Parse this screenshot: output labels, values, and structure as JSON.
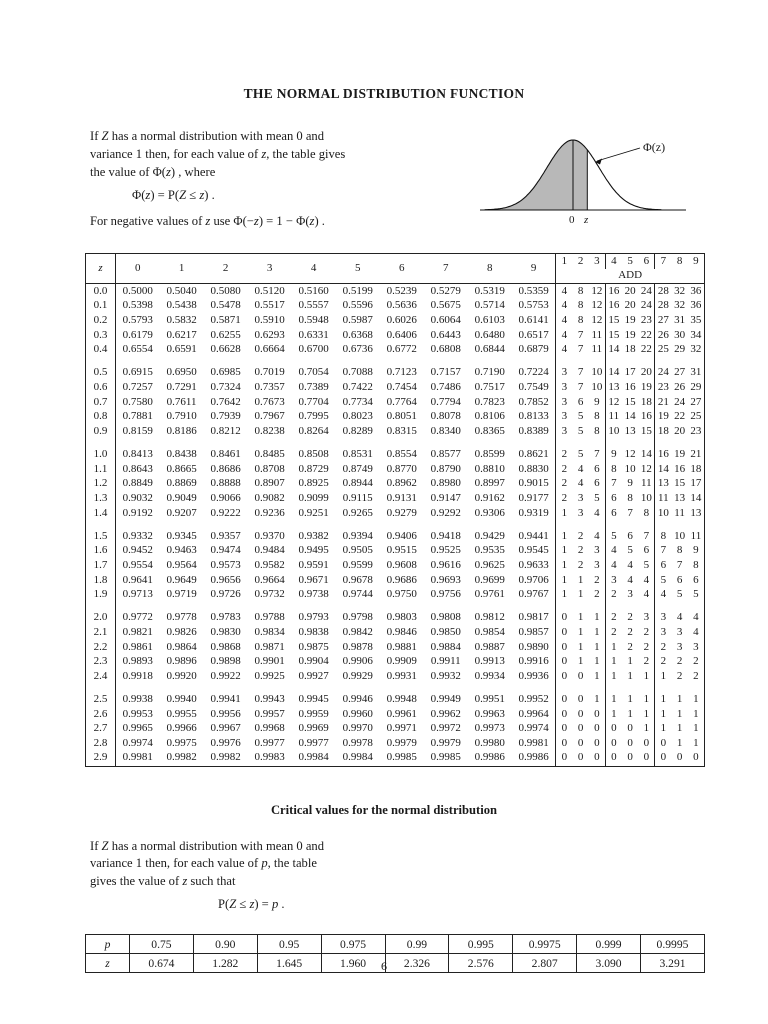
{
  "page": {
    "title": "THE NORMAL DISTRIBUTION FUNCTION",
    "number": "6"
  },
  "intro": {
    "line1": [
      [
        "r",
        "If "
      ],
      [
        "i",
        "Z"
      ],
      [
        "r",
        " has a normal distribution with mean 0 and"
      ]
    ],
    "line2": [
      [
        "r",
        "variance 1 then, for each value of "
      ],
      [
        "i",
        "z"
      ],
      [
        "r",
        ", the table gives"
      ]
    ],
    "line3": [
      [
        "r",
        "the value of  Φ("
      ],
      [
        "i",
        "z"
      ],
      [
        "r",
        ") , where"
      ]
    ],
    "formula": [
      [
        "r",
        "Φ("
      ],
      [
        "i",
        "z"
      ],
      [
        "r",
        ")  =  P("
      ],
      [
        "i",
        "Z"
      ],
      [
        "r",
        "  ≤  "
      ],
      [
        "i",
        "z"
      ],
      [
        "r",
        ") ."
      ]
    ],
    "note": [
      [
        "r",
        "For negative values of "
      ],
      [
        "i",
        "z"
      ],
      [
        "r",
        " use  Φ(−"
      ],
      [
        "i",
        "z"
      ],
      [
        "r",
        ")  =  1 − Φ("
      ],
      [
        "i",
        "z"
      ],
      [
        "r",
        ") ."
      ]
    ]
  },
  "diagram": {
    "phi_label": "Φ(z)",
    "zero_label": "0",
    "z_label": "z",
    "shade_color": "#b8b8b8"
  },
  "normal_table": {
    "corner_header": "z",
    "col_headers": [
      "0",
      "1",
      "2",
      "3",
      "4",
      "5",
      "6",
      "7",
      "8",
      "9"
    ],
    "add_headers": [
      "1",
      "2",
      "3",
      "4",
      "5",
      "6",
      "7",
      "8",
      "9"
    ],
    "add_label": "ADD",
    "rows": [
      {
        "z": "0.0",
        "values": [
          "0.5000",
          "0.5040",
          "0.5080",
          "0.5120",
          "0.5160",
          "0.5199",
          "0.5239",
          "0.5279",
          "0.5319",
          "0.5359"
        ],
        "add": [
          "4",
          "8",
          "12",
          "16",
          "20",
          "24",
          "28",
          "32",
          "36"
        ]
      },
      {
        "z": "0.1",
        "values": [
          "0.5398",
          "0.5438",
          "0.5478",
          "0.5517",
          "0.5557",
          "0.5596",
          "0.5636",
          "0.5675",
          "0.5714",
          "0.5753"
        ],
        "add": [
          "4",
          "8",
          "12",
          "16",
          "20",
          "24",
          "28",
          "32",
          "36"
        ]
      },
      {
        "z": "0.2",
        "values": [
          "0.5793",
          "0.5832",
          "0.5871",
          "0.5910",
          "0.5948",
          "0.5987",
          "0.6026",
          "0.6064",
          "0.6103",
          "0.6141"
        ],
        "add": [
          "4",
          "8",
          "12",
          "15",
          "19",
          "23",
          "27",
          "31",
          "35"
        ]
      },
      {
        "z": "0.3",
        "values": [
          "0.6179",
          "0.6217",
          "0.6255",
          "0.6293",
          "0.6331",
          "0.6368",
          "0.6406",
          "0.6443",
          "0.6480",
          "0.6517"
        ],
        "add": [
          "4",
          "7",
          "11",
          "15",
          "19",
          "22",
          "26",
          "30",
          "34"
        ]
      },
      {
        "z": "0.4",
        "values": [
          "0.6554",
          "0.6591",
          "0.6628",
          "0.6664",
          "0.6700",
          "0.6736",
          "0.6772",
          "0.6808",
          "0.6844",
          "0.6879"
        ],
        "add": [
          "4",
          "7",
          "11",
          "14",
          "18",
          "22",
          "25",
          "29",
          "32"
        ]
      },
      {
        "z": "0.5",
        "values": [
          "0.6915",
          "0.6950",
          "0.6985",
          "0.7019",
          "0.7054",
          "0.7088",
          "0.7123",
          "0.7157",
          "0.7190",
          "0.7224"
        ],
        "add": [
          "3",
          "7",
          "10",
          "14",
          "17",
          "20",
          "24",
          "27",
          "31"
        ]
      },
      {
        "z": "0.6",
        "values": [
          "0.7257",
          "0.7291",
          "0.7324",
          "0.7357",
          "0.7389",
          "0.7422",
          "0.7454",
          "0.7486",
          "0.7517",
          "0.7549"
        ],
        "add": [
          "3",
          "7",
          "10",
          "13",
          "16",
          "19",
          "23",
          "26",
          "29"
        ]
      },
      {
        "z": "0.7",
        "values": [
          "0.7580",
          "0.7611",
          "0.7642",
          "0.7673",
          "0.7704",
          "0.7734",
          "0.7764",
          "0.7794",
          "0.7823",
          "0.7852"
        ],
        "add": [
          "3",
          "6",
          "9",
          "12",
          "15",
          "18",
          "21",
          "24",
          "27"
        ]
      },
      {
        "z": "0.8",
        "values": [
          "0.7881",
          "0.7910",
          "0.7939",
          "0.7967",
          "0.7995",
          "0.8023",
          "0.8051",
          "0.8078",
          "0.8106",
          "0.8133"
        ],
        "add": [
          "3",
          "5",
          "8",
          "11",
          "14",
          "16",
          "19",
          "22",
          "25"
        ]
      },
      {
        "z": "0.9",
        "values": [
          "0.8159",
          "0.8186",
          "0.8212",
          "0.8238",
          "0.8264",
          "0.8289",
          "0.8315",
          "0.8340",
          "0.8365",
          "0.8389"
        ],
        "add": [
          "3",
          "5",
          "8",
          "10",
          "13",
          "15",
          "18",
          "20",
          "23"
        ]
      },
      {
        "z": "1.0",
        "values": [
          "0.8413",
          "0.8438",
          "0.8461",
          "0.8485",
          "0.8508",
          "0.8531",
          "0.8554",
          "0.8577",
          "0.8599",
          "0.8621"
        ],
        "add": [
          "2",
          "5",
          "7",
          "9",
          "12",
          "14",
          "16",
          "19",
          "21"
        ]
      },
      {
        "z": "1.1",
        "values": [
          "0.8643",
          "0.8665",
          "0.8686",
          "0.8708",
          "0.8729",
          "0.8749",
          "0.8770",
          "0.8790",
          "0.8810",
          "0.8830"
        ],
        "add": [
          "2",
          "4",
          "6",
          "8",
          "10",
          "12",
          "14",
          "16",
          "18"
        ]
      },
      {
        "z": "1.2",
        "values": [
          "0.8849",
          "0.8869",
          "0.8888",
          "0.8907",
          "0.8925",
          "0.8944",
          "0.8962",
          "0.8980",
          "0.8997",
          "0.9015"
        ],
        "add": [
          "2",
          "4",
          "6",
          "7",
          "9",
          "11",
          "13",
          "15",
          "17"
        ]
      },
      {
        "z": "1.3",
        "values": [
          "0.9032",
          "0.9049",
          "0.9066",
          "0.9082",
          "0.9099",
          "0.9115",
          "0.9131",
          "0.9147",
          "0.9162",
          "0.9177"
        ],
        "add": [
          "2",
          "3",
          "5",
          "6",
          "8",
          "10",
          "11",
          "13",
          "14"
        ]
      },
      {
        "z": "1.4",
        "values": [
          "0.9192",
          "0.9207",
          "0.9222",
          "0.9236",
          "0.9251",
          "0.9265",
          "0.9279",
          "0.9292",
          "0.9306",
          "0.9319"
        ],
        "add": [
          "1",
          "3",
          "4",
          "6",
          "7",
          "8",
          "10",
          "11",
          "13"
        ]
      },
      {
        "z": "1.5",
        "values": [
          "0.9332",
          "0.9345",
          "0.9357",
          "0.9370",
          "0.9382",
          "0.9394",
          "0.9406",
          "0.9418",
          "0.9429",
          "0.9441"
        ],
        "add": [
          "1",
          "2",
          "4",
          "5",
          "6",
          "7",
          "8",
          "10",
          "11"
        ]
      },
      {
        "z": "1.6",
        "values": [
          "0.9452",
          "0.9463",
          "0.9474",
          "0.9484",
          "0.9495",
          "0.9505",
          "0.9515",
          "0.9525",
          "0.9535",
          "0.9545"
        ],
        "add": [
          "1",
          "2",
          "3",
          "4",
          "5",
          "6",
          "7",
          "8",
          "9"
        ]
      },
      {
        "z": "1.7",
        "values": [
          "0.9554",
          "0.9564",
          "0.9573",
          "0.9582",
          "0.9591",
          "0.9599",
          "0.9608",
          "0.9616",
          "0.9625",
          "0.9633"
        ],
        "add": [
          "1",
          "2",
          "3",
          "4",
          "4",
          "5",
          "6",
          "7",
          "8"
        ]
      },
      {
        "z": "1.8",
        "values": [
          "0.9641",
          "0.9649",
          "0.9656",
          "0.9664",
          "0.9671",
          "0.9678",
          "0.9686",
          "0.9693",
          "0.9699",
          "0.9706"
        ],
        "add": [
          "1",
          "1",
          "2",
          "3",
          "4",
          "4",
          "5",
          "6",
          "6"
        ]
      },
      {
        "z": "1.9",
        "values": [
          "0.9713",
          "0.9719",
          "0.9726",
          "0.9732",
          "0.9738",
          "0.9744",
          "0.9750",
          "0.9756",
          "0.9761",
          "0.9767"
        ],
        "add": [
          "1",
          "1",
          "2",
          "2",
          "3",
          "4",
          "4",
          "5",
          "5"
        ]
      },
      {
        "z": "2.0",
        "values": [
          "0.9772",
          "0.9778",
          "0.9783",
          "0.9788",
          "0.9793",
          "0.9798",
          "0.9803",
          "0.9808",
          "0.9812",
          "0.9817"
        ],
        "add": [
          "0",
          "1",
          "1",
          "2",
          "2",
          "3",
          "3",
          "4",
          "4"
        ]
      },
      {
        "z": "2.1",
        "values": [
          "0.9821",
          "0.9826",
          "0.9830",
          "0.9834",
          "0.9838",
          "0.9842",
          "0.9846",
          "0.9850",
          "0.9854",
          "0.9857"
        ],
        "add": [
          "0",
          "1",
          "1",
          "2",
          "2",
          "2",
          "3",
          "3",
          "4"
        ]
      },
      {
        "z": "2.2",
        "values": [
          "0.9861",
          "0.9864",
          "0.9868",
          "0.9871",
          "0.9875",
          "0.9878",
          "0.9881",
          "0.9884",
          "0.9887",
          "0.9890"
        ],
        "add": [
          "0",
          "1",
          "1",
          "1",
          "2",
          "2",
          "2",
          "3",
          "3"
        ]
      },
      {
        "z": "2.3",
        "values": [
          "0.9893",
          "0.9896",
          "0.9898",
          "0.9901",
          "0.9904",
          "0.9906",
          "0.9909",
          "0.9911",
          "0.9913",
          "0.9916"
        ],
        "add": [
          "0",
          "1",
          "1",
          "1",
          "1",
          "2",
          "2",
          "2",
          "2"
        ]
      },
      {
        "z": "2.4",
        "values": [
          "0.9918",
          "0.9920",
          "0.9922",
          "0.9925",
          "0.9927",
          "0.9929",
          "0.9931",
          "0.9932",
          "0.9934",
          "0.9936"
        ],
        "add": [
          "0",
          "0",
          "1",
          "1",
          "1",
          "1",
          "1",
          "2",
          "2"
        ]
      },
      {
        "z": "2.5",
        "values": [
          "0.9938",
          "0.9940",
          "0.9941",
          "0.9943",
          "0.9945",
          "0.9946",
          "0.9948",
          "0.9949",
          "0.9951",
          "0.9952"
        ],
        "add": [
          "0",
          "0",
          "1",
          "1",
          "1",
          "1",
          "1",
          "1",
          "1"
        ]
      },
      {
        "z": "2.6",
        "values": [
          "0.9953",
          "0.9955",
          "0.9956",
          "0.9957",
          "0.9959",
          "0.9960",
          "0.9961",
          "0.9962",
          "0.9963",
          "0.9964"
        ],
        "add": [
          "0",
          "0",
          "0",
          "1",
          "1",
          "1",
          "1",
          "1",
          "1"
        ]
      },
      {
        "z": "2.7",
        "values": [
          "0.9965",
          "0.9966",
          "0.9967",
          "0.9968",
          "0.9969",
          "0.9970",
          "0.9971",
          "0.9972",
          "0.9973",
          "0.9974"
        ],
        "add": [
          "0",
          "0",
          "0",
          "0",
          "0",
          "1",
          "1",
          "1",
          "1"
        ]
      },
      {
        "z": "2.8",
        "values": [
          "0.9974",
          "0.9975",
          "0.9976",
          "0.9977",
          "0.9977",
          "0.9978",
          "0.9979",
          "0.9979",
          "0.9980",
          "0.9981"
        ],
        "add": [
          "0",
          "0",
          "0",
          "0",
          "0",
          "0",
          "0",
          "1",
          "1"
        ]
      },
      {
        "z": "2.9",
        "values": [
          "0.9981",
          "0.9982",
          "0.9982",
          "0.9983",
          "0.9984",
          "0.9984",
          "0.9985",
          "0.9985",
          "0.9986",
          "0.9986"
        ],
        "add": [
          "0",
          "0",
          "0",
          "0",
          "0",
          "0",
          "0",
          "0",
          "0"
        ]
      }
    ]
  },
  "critical": {
    "title": "Critical values for the normal distribution",
    "line1": [
      [
        "r",
        "If "
      ],
      [
        "i",
        "Z"
      ],
      [
        "r",
        " has a normal distribution with mean 0 and"
      ]
    ],
    "line2": [
      [
        "r",
        "variance 1 then, for each value of "
      ],
      [
        "i",
        "p"
      ],
      [
        "r",
        ", the table"
      ]
    ],
    "line3": [
      [
        "r",
        "gives the value of "
      ],
      [
        "i",
        "z"
      ],
      [
        "r",
        " such that"
      ]
    ],
    "formula": [
      [
        "r",
        "P("
      ],
      [
        "i",
        "Z"
      ],
      [
        "r",
        "  ≤  "
      ],
      [
        "i",
        "z"
      ],
      [
        "r",
        ")  =  "
      ],
      [
        "i",
        "p"
      ],
      [
        "r",
        " ."
      ]
    ],
    "row_p_label": "p",
    "row_z_label": "z",
    "p_values": [
      "0.75",
      "0.90",
      "0.95",
      "0.975",
      "0.99",
      "0.995",
      "0.9975",
      "0.999",
      "0.9995"
    ],
    "z_values": [
      "0.674",
      "1.282",
      "1.645",
      "1.960",
      "2.326",
      "2.576",
      "2.807",
      "3.090",
      "3.291"
    ]
  }
}
